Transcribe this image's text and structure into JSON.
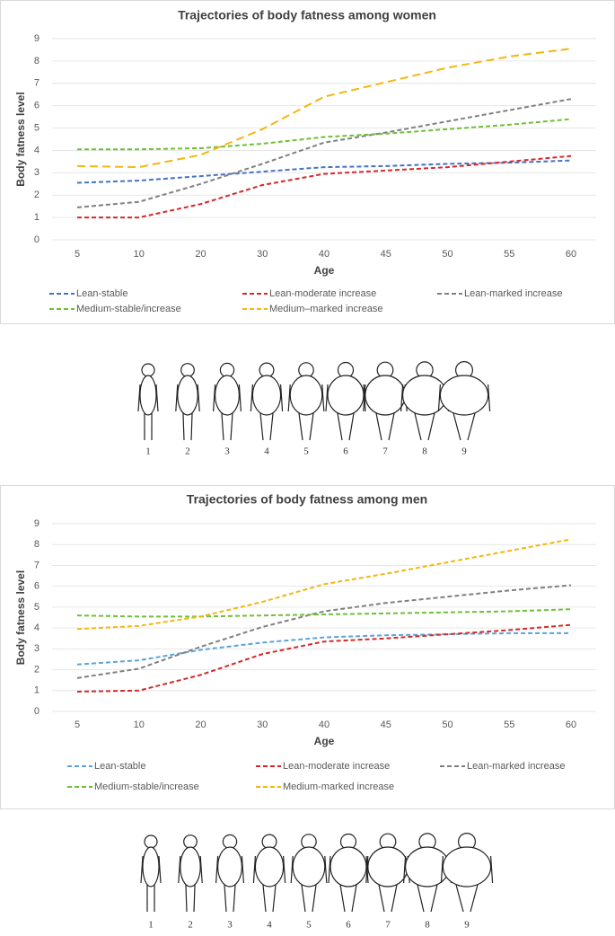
{
  "chart_data": [
    {
      "type": "line",
      "title": "Trajectories of body fatness among women",
      "x_label": "Age",
      "y_label": "Body fatness level",
      "categories": [
        "5",
        "10",
        "20",
        "30",
        "40",
        "45",
        "50",
        "55",
        "60"
      ],
      "ylim": [
        0,
        9
      ],
      "yticks": [
        0,
        1,
        2,
        3,
        4,
        5,
        6,
        7,
        8,
        9
      ],
      "grid": true,
      "series": [
        {
          "name": "Lean-stable",
          "color": "#4472c4",
          "values": [
            2.55,
            2.65,
            2.85,
            3.05,
            3.25,
            3.3,
            3.4,
            3.45,
            3.55
          ]
        },
        {
          "name": "Lean-moderate increase",
          "color": "#d42a2a",
          "values": [
            1.0,
            1.0,
            1.6,
            2.45,
            2.95,
            3.1,
            3.25,
            3.5,
            3.75
          ]
        },
        {
          "name": "Lean-marked increase",
          "color": "#808080",
          "values": [
            1.45,
            1.7,
            2.5,
            3.4,
            4.35,
            4.8,
            5.3,
            5.8,
            6.3
          ]
        },
        {
          "name": "Medium-stable/increase",
          "color": "#6fc035",
          "values": [
            4.05,
            4.05,
            4.1,
            4.3,
            4.6,
            4.75,
            4.95,
            5.15,
            5.4
          ]
        },
        {
          "name": "Medium–marked increase",
          "color": "#f2b70f",
          "values": [
            3.3,
            3.25,
            3.8,
            4.95,
            6.4,
            7.05,
            7.7,
            8.2,
            8.55
          ]
        }
      ]
    },
    {
      "type": "line",
      "title": "Trajectories of body fatness among men",
      "x_label": "Age",
      "y_label": "Body fatness level",
      "categories": [
        "5",
        "10",
        "20",
        "30",
        "40",
        "45",
        "50",
        "55",
        "60"
      ],
      "ylim": [
        0,
        9
      ],
      "yticks": [
        0,
        1,
        2,
        3,
        4,
        5,
        6,
        7,
        8,
        9
      ],
      "grid": true,
      "series": [
        {
          "name": "Lean-stable",
          "color": "#5ba3d9",
          "values": [
            2.25,
            2.45,
            2.95,
            3.3,
            3.55,
            3.65,
            3.7,
            3.75,
            3.75
          ]
        },
        {
          "name": "Lean-moderate increase",
          "color": "#d42a2a",
          "values": [
            0.95,
            1.0,
            1.75,
            2.75,
            3.35,
            3.5,
            3.7,
            3.9,
            4.15
          ]
        },
        {
          "name": "Lean-marked increase",
          "color": "#808080",
          "values": [
            1.6,
            2.05,
            3.1,
            4.05,
            4.8,
            5.2,
            5.5,
            5.8,
            6.05
          ]
        },
        {
          "name": "Medium-stable/increase",
          "color": "#6fc035",
          "values": [
            4.6,
            4.55,
            4.55,
            4.6,
            4.65,
            4.7,
            4.75,
            4.8,
            4.9
          ]
        },
        {
          "name": "Medium-marked increase",
          "color": "#f2b70f",
          "values": [
            3.95,
            4.1,
            4.55,
            5.25,
            6.1,
            6.6,
            7.15,
            7.7,
            8.25
          ]
        }
      ]
    }
  ],
  "silhouettes": [
    {
      "labels": [
        "1",
        "2",
        "3",
        "4",
        "5",
        "6",
        "7",
        "8",
        "9"
      ]
    },
    {
      "labels": [
        "1",
        "2",
        "3",
        "4",
        "5",
        "6",
        "7",
        "8",
        "9"
      ]
    }
  ]
}
